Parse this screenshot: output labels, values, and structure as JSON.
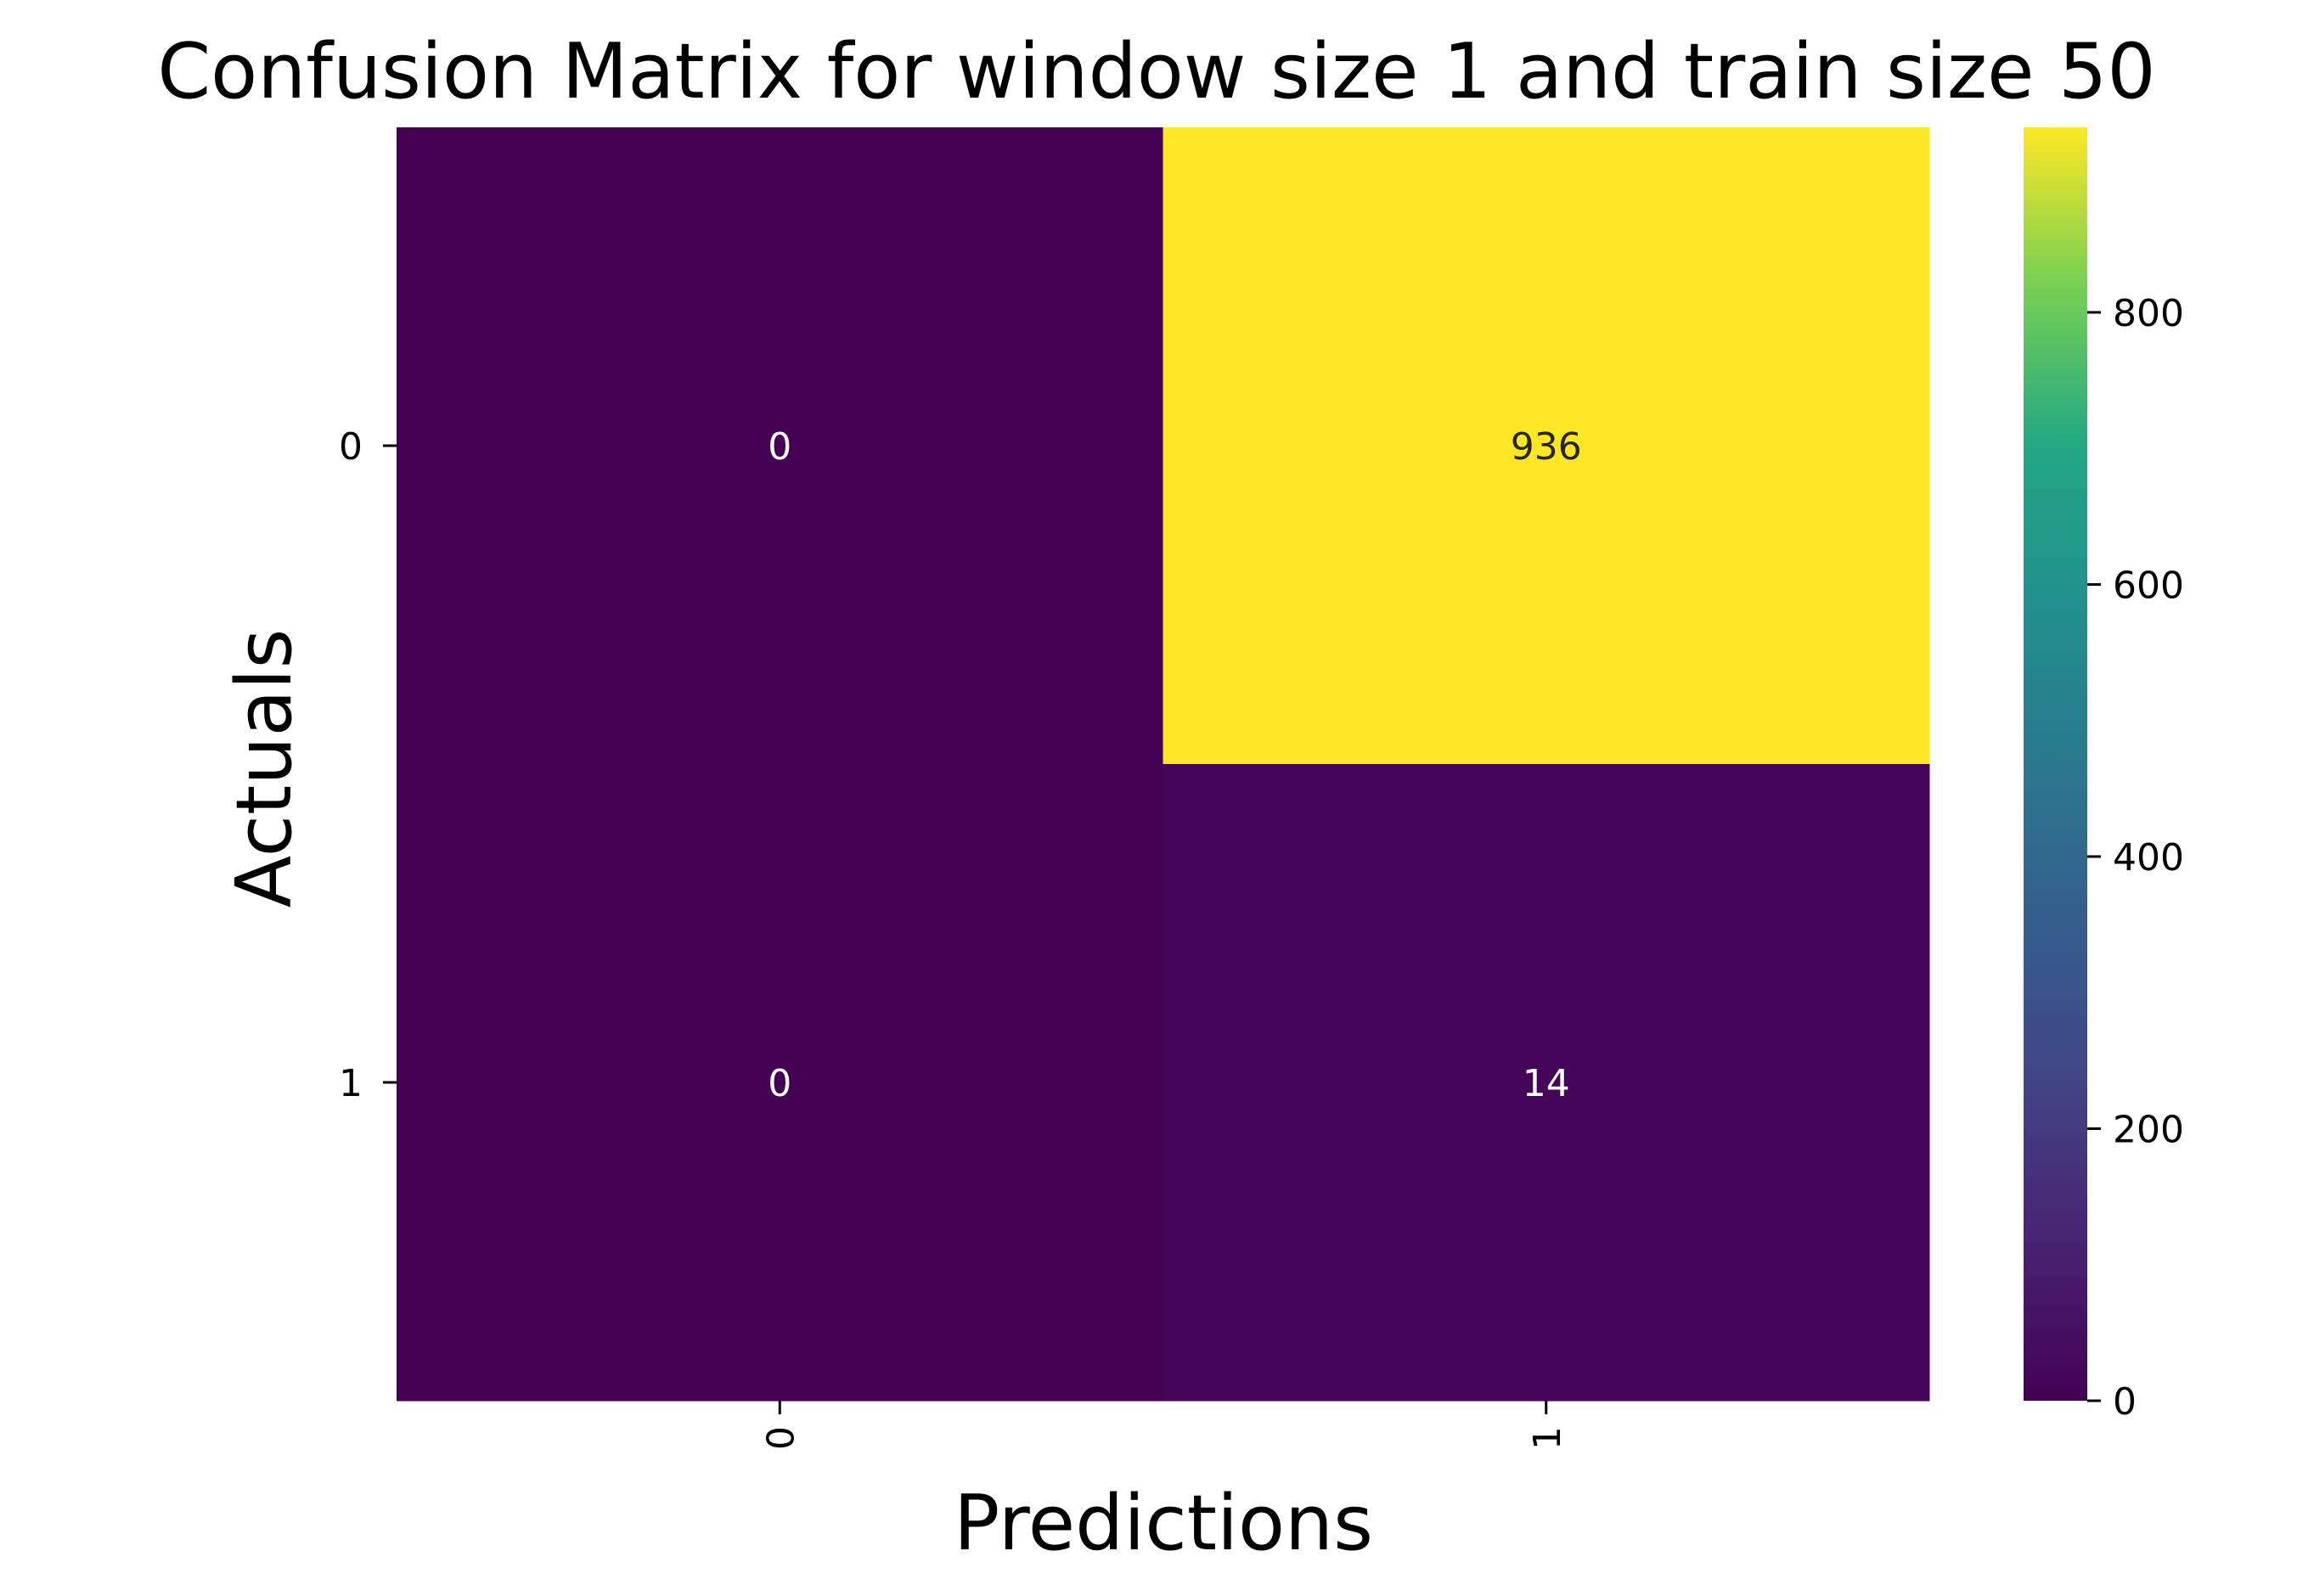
{
  "chart_data": {
    "type": "heatmap",
    "title": "Confusion Matrix  for window size 1 and train size 50",
    "xlabel": "Predictions",
    "ylabel": "Actuals",
    "x_categories": [
      "0",
      "1"
    ],
    "y_categories": [
      "0",
      "1"
    ],
    "values": [
      [
        0,
        936
      ],
      [
        0,
        14
      ]
    ],
    "colormap": "viridis",
    "colorbar": {
      "min": 0,
      "max": 936,
      "ticks": [
        0,
        200,
        400,
        600,
        800
      ],
      "tick_labels": [
        "0",
        "200",
        "400",
        "600",
        "800"
      ]
    },
    "grid": false,
    "x_tick_rotation": 90
  }
}
